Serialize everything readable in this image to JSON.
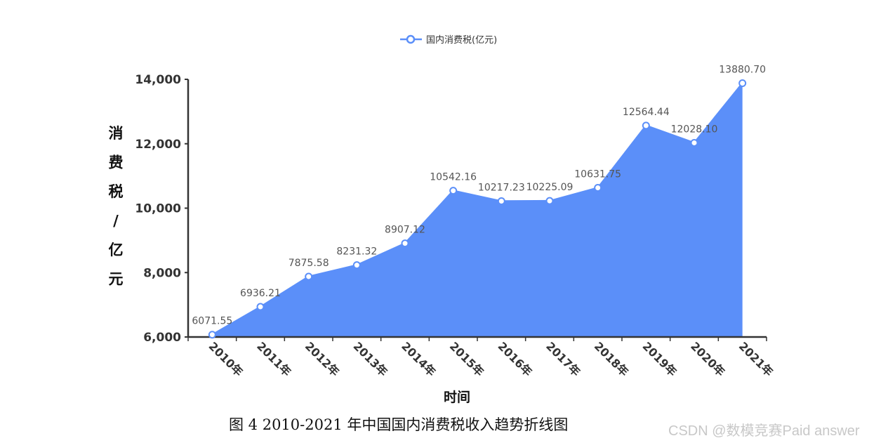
{
  "chart_data": {
    "type": "area",
    "legend": "国内消费税(亿元)",
    "legend_position": "top-center",
    "xlabel": "时间",
    "ylabel": "消费税/亿元",
    "categories": [
      "2010年",
      "2011年",
      "2012年",
      "2013年",
      "2014年",
      "2015年",
      "2016年",
      "2017年",
      "2018年",
      "2019年",
      "2020年",
      "2021年"
    ],
    "series": [
      {
        "name": "国内消费税(亿元)",
        "values": [
          6071.55,
          6936.21,
          7875.58,
          8231.32,
          8907.12,
          10542.16,
          10217.23,
          10225.09,
          10631.75,
          12564.44,
          12028.1,
          13880.7
        ]
      }
    ],
    "data_labels": [
      "6071.55",
      "6936.21",
      "7875.58",
      "8231.32",
      "8907.12",
      "10542.16",
      "10217.23",
      "10225.09",
      "10631.75",
      "12564.44",
      "12028.10",
      "13880.70"
    ],
    "yticks": [
      6000,
      8000,
      10000,
      12000,
      14000
    ],
    "ytick_labels": [
      "6,000",
      "8,000",
      "10,000",
      "12,000",
      "14,000"
    ],
    "ylim": [
      6000,
      14000
    ],
    "grid": false,
    "colors": {
      "line": "#5b8ff9",
      "fill": "#5b8ff9",
      "marker_fill": "#ffffff"
    }
  },
  "caption": "图 4   2010-2021 年中国国内消费税收入趋势折线图",
  "watermark": "CSDN @数模竞赛Paid answer"
}
